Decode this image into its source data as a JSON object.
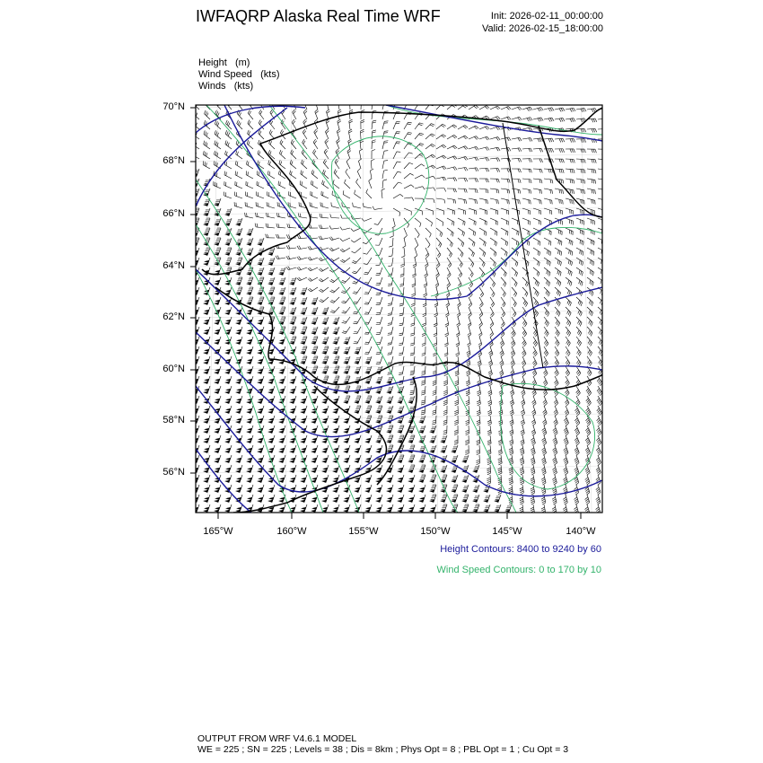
{
  "header": {
    "title": "IWFAQRP Alaska Real Time WRF",
    "init": "Init: 2026-02-11_00:00:00",
    "valid": "Valid: 2026-02-15_18:00:00"
  },
  "fields": [
    "Height   (m)",
    "Wind Speed   (kts)",
    "Winds   (kts)"
  ],
  "map": {
    "lat_labels": [
      "70°N",
      "68°N",
      "66°N",
      "64°N",
      "62°N",
      "60°N",
      "58°N",
      "56°N"
    ],
    "lon_labels": [
      "165°W",
      "160°W",
      "155°W",
      "150°W",
      "145°W",
      "140°W"
    ],
    "extent": {
      "lon": [
        -166.5,
        -138.5
      ],
      "lat": [
        54.5,
        70.2
      ]
    },
    "colors": {
      "height": "#1a1a9a",
      "wind_speed": "#33b36b",
      "barbs": "#000000",
      "coast": "#000000"
    }
  },
  "legend": {
    "height": "Height Contours: 8400 to 9240 by 60",
    "wind_speed": "Wind Speed Contours: 0 to 170 by 10"
  },
  "footer": {
    "line1": "OUTPUT FROM WRF V4.6.1 MODEL",
    "line2": "WE = 225 ; SN = 225 ; Levels = 38 ; Dis = 8km ; Phys Opt = 8 ; PBL Opt = 1 ; Cu Opt = 3"
  }
}
